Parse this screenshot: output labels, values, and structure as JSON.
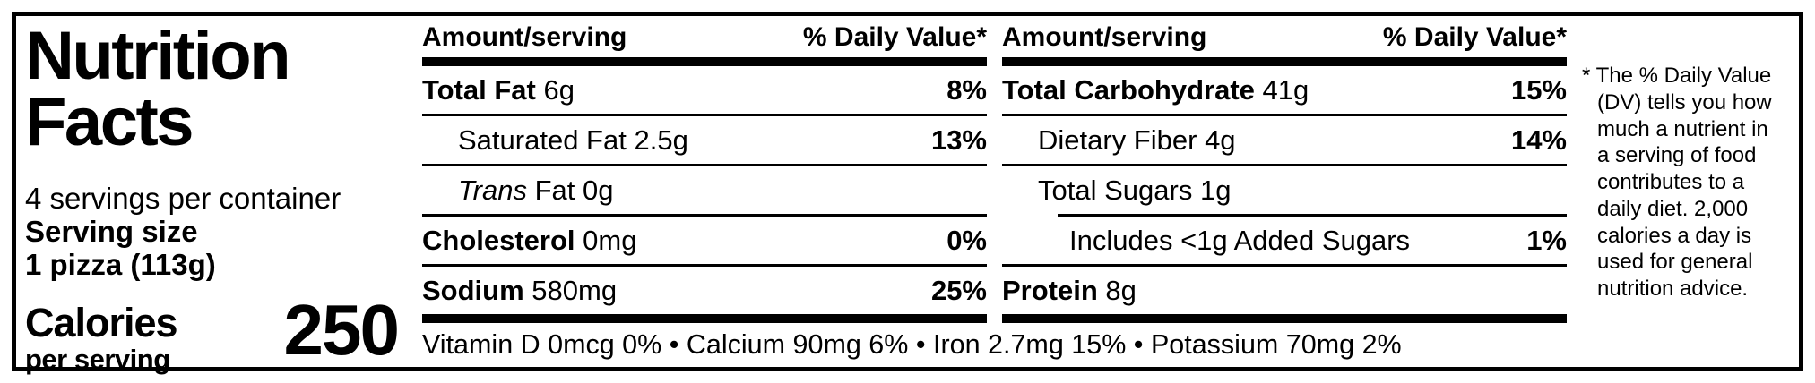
{
  "header": {
    "title_line1": "Nutrition",
    "title_line2": "Facts"
  },
  "serving": {
    "per_container": "4 servings per container",
    "size_label": "Serving size",
    "size_value": "1 pizza (113g)"
  },
  "calories": {
    "label": "Calories",
    "sublabel": "per serving",
    "value": "250"
  },
  "table": {
    "col1": {
      "header_amount": "Amount/serving",
      "header_dv": "% Daily Value*",
      "rows": [
        {
          "name": "Total Fat",
          "amount": "6g",
          "dv": "8%"
        },
        {
          "name": "Saturated Fat",
          "amount": "2.5g",
          "dv": "13%"
        },
        {
          "name_italic": "Trans",
          "name": "Fat",
          "amount": "0g",
          "dv": ""
        },
        {
          "name": "Cholesterol",
          "amount": "0mg",
          "dv": "0%"
        },
        {
          "name": "Sodium",
          "amount": "580mg",
          "dv": "25%"
        }
      ]
    },
    "col2": {
      "header_amount": "Amount/serving",
      "header_dv": "% Daily Value*",
      "rows": [
        {
          "name": "Total Carbohydrate",
          "amount": "41g",
          "dv": "15%"
        },
        {
          "name": "Dietary Fiber",
          "amount": "4g",
          "dv": "14%"
        },
        {
          "name": "Total Sugars",
          "amount": "1g",
          "dv": ""
        },
        {
          "name": "Includes <1g Added Sugars",
          "amount": "",
          "dv": "1%"
        },
        {
          "name": "Protein",
          "amount": "8g",
          "dv": ""
        }
      ]
    }
  },
  "micronutrients": "Vitamin D 0mcg 0% • Calcium 90mg 6% • Iron 2.7mg 15% • Potassium 70mg 2%",
  "footnote": "* The % Daily Value (DV) tells you how much a nutrient in a serving of food contributes to a daily diet. 2,000 calories a day is used for general nutrition advice.",
  "colors": {
    "ink": "#000000",
    "background": "#ffffff"
  }
}
